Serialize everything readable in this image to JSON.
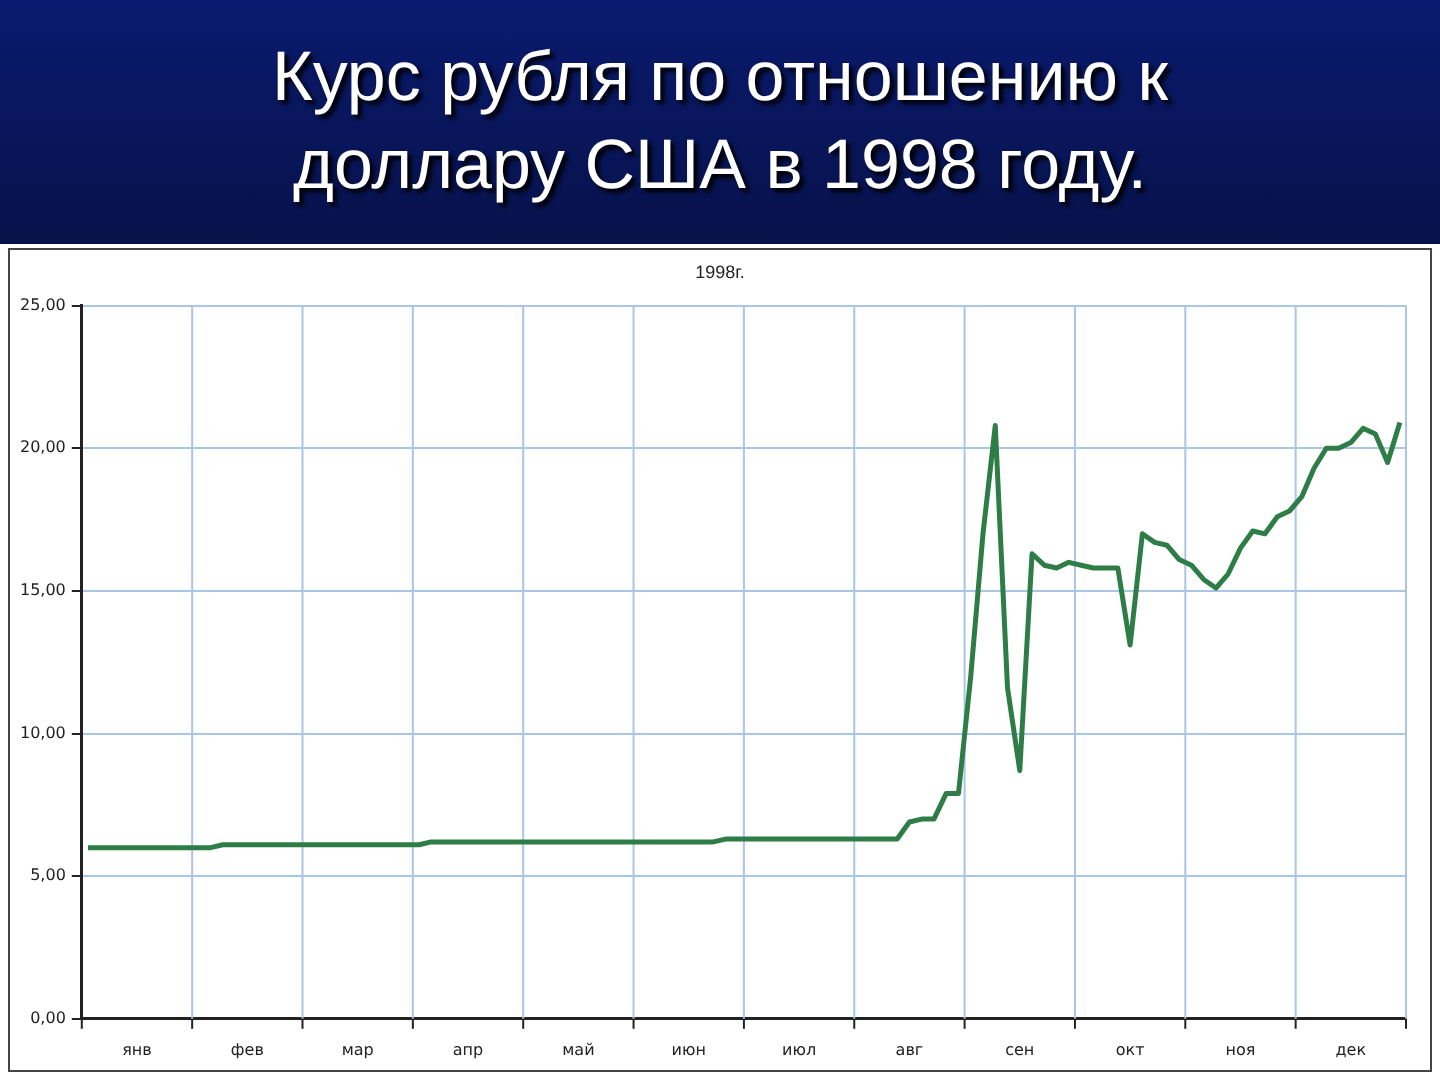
{
  "chart_data": {
    "type": "line",
    "title": "Курс рубля по отношению к доллару США в 1998 году.",
    "subtitle": "1998г.",
    "categories": [
      null,
      null,
      null,
      null,
      "янв",
      null,
      null,
      null,
      null,
      null,
      null,
      null,
      null,
      "фев",
      null,
      null,
      null,
      null,
      null,
      null,
      null,
      null,
      "мар",
      null,
      null,
      null,
      null,
      null,
      null,
      null,
      null,
      "апр",
      null,
      null,
      null,
      null,
      null,
      null,
      null,
      null,
      "май",
      null,
      null,
      null,
      null,
      null,
      null,
      null,
      null,
      "июн",
      null,
      null,
      null,
      null,
      null,
      null,
      null,
      null,
      "июл",
      null,
      null,
      null,
      null,
      null,
      null,
      null,
      null,
      "авг",
      null,
      null,
      null,
      null,
      null,
      null,
      null,
      null,
      "сен",
      null,
      null,
      null,
      null,
      null,
      null,
      null,
      null,
      "окт",
      null,
      null,
      null,
      null,
      null,
      null,
      null,
      null,
      "ноя",
      null,
      null,
      null,
      null,
      null,
      null,
      null,
      null,
      "дек",
      null,
      null,
      null,
      null
    ],
    "series": [
      {
        "color": "#2e7d46",
        "values": [
          6.0,
          6.0,
          6.0,
          6.0,
          6.0,
          6.0,
          6.0,
          6.0,
          6.0,
          6.0,
          6.0,
          6.1,
          6.1,
          6.1,
          6.1,
          6.1,
          6.1,
          6.1,
          6.1,
          6.1,
          6.1,
          6.1,
          6.1,
          6.1,
          6.1,
          6.1,
          6.1,
          6.1,
          6.2,
          6.2,
          6.2,
          6.2,
          6.2,
          6.2,
          6.2,
          6.2,
          6.2,
          6.2,
          6.2,
          6.2,
          6.2,
          6.2,
          6.2,
          6.2,
          6.2,
          6.2,
          6.2,
          6.2,
          6.2,
          6.2,
          6.2,
          6.2,
          6.3,
          6.3,
          6.3,
          6.3,
          6.3,
          6.3,
          6.3,
          6.3,
          6.3,
          6.3,
          6.3,
          6.3,
          6.3,
          6.3,
          6.3,
          6.9,
          7.0,
          7.0,
          7.9,
          7.9,
          12.0,
          17.0,
          20.8,
          11.6,
          8.7,
          16.3,
          15.9,
          15.8,
          16.0,
          15.9,
          15.8,
          15.8,
          15.8,
          13.1,
          17.0,
          16.7,
          16.6,
          16.1,
          15.9,
          15.4,
          15.1,
          15.6,
          16.5,
          17.1,
          17.0,
          17.6,
          17.8,
          18.3,
          19.3,
          20.0,
          20.0,
          20.2,
          20.7,
          20.5,
          19.5,
          20.9
        ]
      }
    ],
    "ylim": [
      0,
      25
    ],
    "yticks": [
      {
        "value": 0,
        "label": "0,00"
      },
      {
        "value": 5,
        "label": "5,00"
      },
      {
        "value": 10,
        "label": "10,00"
      },
      {
        "value": 15,
        "label": "15,00"
      },
      {
        "value": 20,
        "label": "20,00"
      },
      {
        "value": 25,
        "label": "25,00"
      }
    ],
    "grid": true,
    "legend": false,
    "marker": "none",
    "line_style": "solid"
  }
}
